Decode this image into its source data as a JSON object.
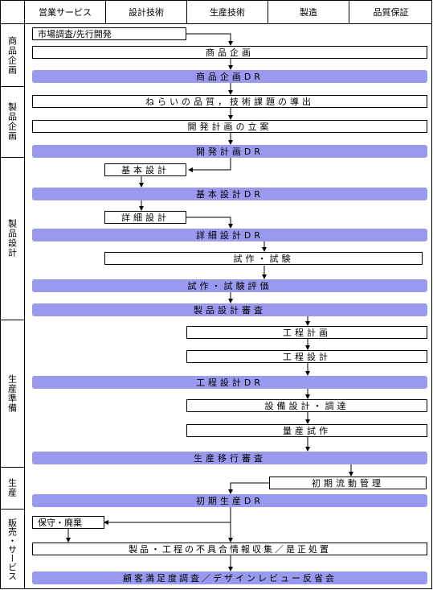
{
  "columns": [
    "営業サービス",
    "設計技術",
    "生産技術",
    "製造",
    "品質保証"
  ],
  "phases": [
    "商品企画",
    "製品企画",
    "製品設計",
    "生産準備",
    "生産",
    "販売・サービス"
  ],
  "steps": {
    "s1": "市場調査/先行開発",
    "s2": "商品企画",
    "s3": "商品企画DR",
    "s4": "ねらいの品質，技術課題の導出",
    "s5": "開発計画の立案",
    "s6": "開発計画DR",
    "s7": "基本設計",
    "s8": "基本設計DR",
    "s9": "詳細設計",
    "s10": "詳細設計DR",
    "s11": "試作・試験",
    "s12": "試作・試験評価",
    "s13": "製品設計審査",
    "s14": "工程計画",
    "s15": "工程設計",
    "s16": "工程設計DR",
    "s17": "設備設計・調達",
    "s18": "量産試作",
    "s19": "生産移行審査",
    "s20": "初期流動管理",
    "s21": "初期生産DR",
    "s22": "保守・廃棄",
    "s23": "製品・工程の不具合情報収集／是正処置",
    "s24": "顧客満足度調査／デザインレビュー反省会"
  }
}
